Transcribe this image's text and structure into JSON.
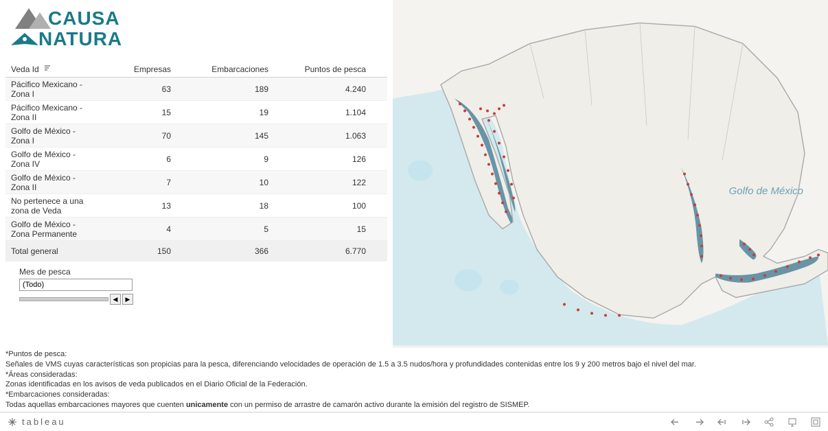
{
  "logo": {
    "line1": "CAUSA",
    "line2": "NATURA",
    "primary_color": "#1a7a8a",
    "accent_color": "#808080"
  },
  "table": {
    "columns": [
      "Veda Id",
      "Empresas",
      "Embarcaciones",
      "Puntos de pesca"
    ],
    "rows": [
      {
        "id": "Pácifico Mexicano - Zona I",
        "empresas": "63",
        "embarcaciones": "189",
        "puntos": "4.240"
      },
      {
        "id": "Pácifico Mexicano - Zona II",
        "empresas": "15",
        "embarcaciones": "19",
        "puntos": "1.104"
      },
      {
        "id": "Golfo de México - Zona I",
        "empresas": "70",
        "embarcaciones": "145",
        "puntos": "1.063"
      },
      {
        "id": "Golfo de México - Zona IV",
        "empresas": "6",
        "embarcaciones": "9",
        "puntos": "126"
      },
      {
        "id": "Golfo de México - Zona II",
        "empresas": "7",
        "embarcaciones": "10",
        "puntos": "122"
      },
      {
        "id": "No pertenece a una zona de Veda",
        "empresas": "13",
        "embarcaciones": "18",
        "puntos": "100"
      },
      {
        "id": "Golfo de México - Zona Permanente",
        "empresas": "4",
        "embarcaciones": "5",
        "puntos": "15"
      }
    ],
    "total": {
      "id": "Total general",
      "empresas": "150",
      "embarcaciones": "366",
      "puntos": "6.770"
    }
  },
  "filter": {
    "label": "Mes de pesca",
    "value": "(Todo)"
  },
  "map": {
    "land_color": "#efeee8",
    "water_color": "#c5e4ee",
    "border_color": "#a8a8a8",
    "zone_color": "#6894a6",
    "point_color": "#c83c3c",
    "label": "Golfo de México",
    "label_color": "#6da2b8"
  },
  "footnotes": {
    "f1_label": "*Puntos de pesca:",
    "f1_text": "Señales de VMS cuyas características son propicias para la pesca, diferenciando velocidades de operación de 1.5 a 3.5 nudos/hora y profundidades contenidas entre los 9 y 200 metros bajo el nivel del mar.",
    "f2_label": "*Áreas consideradas:",
    "f2_text": "Zonas identificadas en los avisos de veda publicados en el Diario Oficial de la Federación.",
    "f3_label": "*Embarcaciones consideradas:",
    "f3_text_pre": "Todas aquellas embarcaciones mayores que cuenten ",
    "f3_bold": "unicamente",
    "f3_text_post": " con un permiso de arrastre de camarón activo durante la emisión del registro de SISMEP."
  },
  "toolbar": {
    "brand": "tableau"
  }
}
